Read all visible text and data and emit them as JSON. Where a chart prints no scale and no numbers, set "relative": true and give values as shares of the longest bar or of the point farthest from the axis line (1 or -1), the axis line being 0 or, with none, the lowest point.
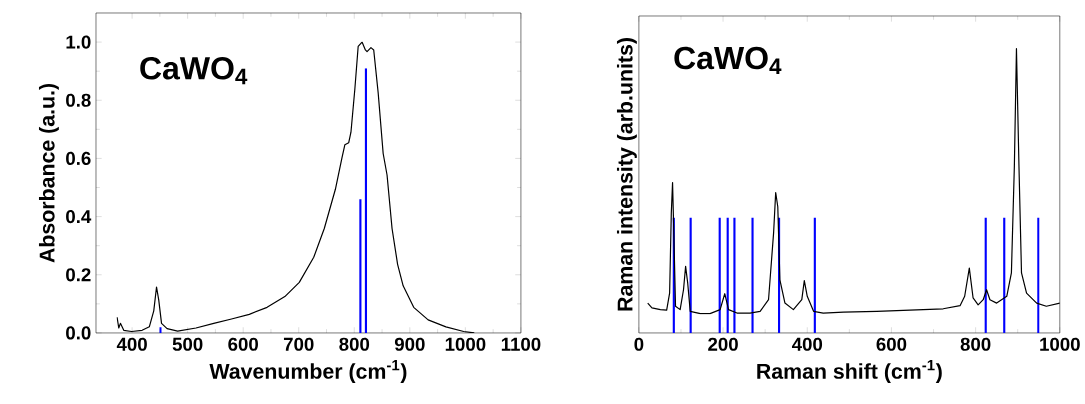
{
  "chart_data": [
    {
      "type": "line",
      "xlabel": "Wavenumber (cm$^{-1}$)",
      "ylabel": "Absorbance (a.u.)",
      "annotations": [
        "CaWO$_{4}$"
      ],
      "xlim": [
        335,
        1100
      ],
      "ylim": [
        0,
        1.1
      ],
      "xticks": [
        400,
        500,
        600,
        700,
        800,
        900,
        1000,
        1100
      ],
      "yticks": [
        {
          "value": 0,
          "label": "0.0"
        },
        {
          "value": 0.2,
          "label": "0.2"
        },
        {
          "value": 0.4,
          "label": "0.4"
        },
        {
          "value": 0.6,
          "label": "0.6"
        },
        {
          "value": 0.8,
          "label": "0.8"
        },
        {
          "value": 1,
          "label": "1.0"
        }
      ],
      "marker": "none",
      "series": [
        {
          "color": "#000000",
          "x": [
            373,
            376,
            379,
            385,
            399,
            418,
            431,
            439,
            444,
            448,
            453,
            463,
            482,
            515,
            547,
            579,
            611,
            643,
            675,
            701,
            727,
            746,
            766,
            778,
            783,
            790,
            794,
            801,
            807,
            814,
            820,
            823,
            830,
            835,
            843,
            852,
            859,
            868,
            878,
            888,
            907,
            933,
            965,
            997,
            1016
          ],
          "values": [
            0.054,
            0.017,
            0.033,
            0.009,
            0.005,
            0.009,
            0.021,
            0.076,
            0.158,
            0.113,
            0.033,
            0.015,
            0.006,
            0.017,
            0.033,
            0.048,
            0.064,
            0.088,
            0.125,
            0.174,
            0.26,
            0.359,
            0.494,
            0.604,
            0.647,
            0.654,
            0.69,
            0.838,
            0.985,
            1.0,
            0.973,
            0.967,
            0.981,
            0.973,
            0.826,
            0.617,
            0.543,
            0.359,
            0.236,
            0.162,
            0.088,
            0.045,
            0.021,
            0.005,
            0.0
          ]
        },
        {
          "type": "bar",
          "color": "#0000ff",
          "x": [
            451,
            811,
            821
          ],
          "values": [
            0.02,
            0.46,
            0.91
          ]
        }
      ]
    },
    {
      "type": "line",
      "xlabel": "Raman shift (cm$^{-1}$)",
      "ylabel": "Raman intensity (arb.units)",
      "annotations": [
        "CaWO$_{4}$"
      ],
      "relative": true,
      "xlim": [
        0,
        1000
      ],
      "xticks": [
        0,
        200,
        400,
        600,
        800,
        1000
      ],
      "marker": "none",
      "series": [
        {
          "color": "#000000",
          "x": [
            21,
            31,
            51,
            66,
            73,
            77,
            80,
            83,
            87,
            98,
            106,
            111,
            116,
            122,
            146,
            169,
            193,
            204,
            213,
            233,
            264,
            288,
            308,
            320,
            325,
            330,
            335,
            347,
            367,
            387,
            393,
            400,
            415,
            438,
            486,
            565,
            644,
            723,
            763,
            774,
            785,
            794,
            806,
            818,
            826,
            834,
            850,
            874,
            885,
            892,
            897,
            903,
            909,
            921,
            945,
            968,
            1000
          ],
          "values": [
            0.105,
            0.088,
            0.082,
            0.08,
            0.14,
            0.421,
            0.529,
            0.351,
            0.094,
            0.082,
            0.152,
            0.234,
            0.175,
            0.076,
            0.068,
            0.068,
            0.082,
            0.138,
            0.082,
            0.07,
            0.07,
            0.076,
            0.117,
            0.351,
            0.494,
            0.444,
            0.187,
            0.105,
            0.082,
            0.117,
            0.184,
            0.129,
            0.076,
            0.07,
            0.073,
            0.076,
            0.08,
            0.085,
            0.096,
            0.129,
            0.228,
            0.123,
            0.099,
            0.117,
            0.152,
            0.117,
            0.105,
            0.129,
            0.211,
            0.585,
            1.0,
            0.585,
            0.211,
            0.14,
            0.105,
            0.094,
            0.105
          ]
        },
        {
          "type": "bar",
          "color": "#0000ff",
          "x": [
            83,
            123,
            192,
            211,
            227,
            270,
            333,
            418,
            824,
            868,
            949
          ],
          "values": [
            0.405,
            0.405,
            0.405,
            0.405,
            0.405,
            0.405,
            0.405,
            0.405,
            0.405,
            0.405,
            0.405
          ]
        }
      ]
    }
  ]
}
